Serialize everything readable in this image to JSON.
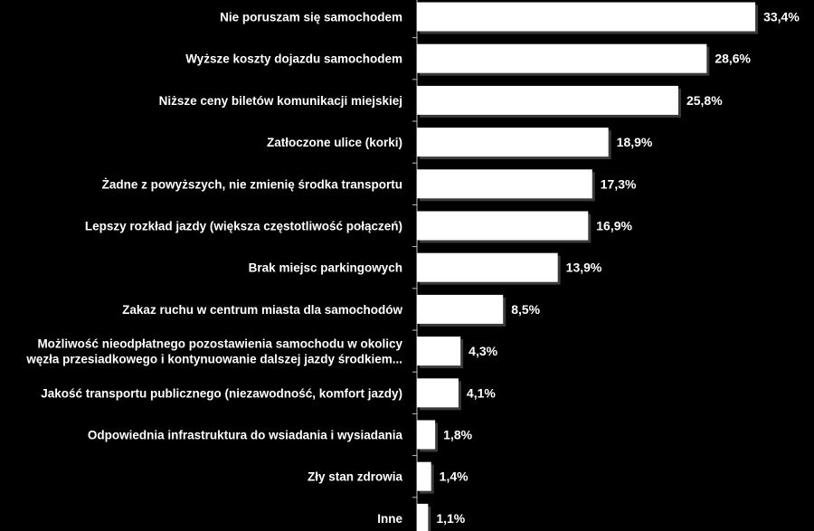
{
  "chart_data": {
    "type": "bar",
    "orientation": "horizontal",
    "title": "",
    "xlabel": "",
    "ylabel": "",
    "xlim": [
      0,
      35
    ],
    "grid": false,
    "legend": "none",
    "colors": {
      "background": "#000000",
      "bar": "#ffffff",
      "text": "#ffffff"
    },
    "categories": [
      [
        "Nie poruszam się samochodem"
      ],
      [
        "Wyższe koszty dojazdu samochodem"
      ],
      [
        "Niższe ceny biletów komunikacji miejskiej"
      ],
      [
        "Zatłoczone ulice (korki)"
      ],
      [
        "Żadne z powyższych, nie zmienię środka transportu"
      ],
      [
        "Lepszy rozkład jazdy (większa częstotliwość połączeń)"
      ],
      [
        "Brak miejsc parkingowych"
      ],
      [
        "Zakaz ruchu w centrum miasta dla samochodów"
      ],
      [
        "Możliwość nieodpłatnego pozostawienia samochodu w okolicy",
        "węzła przesiadkowego i kontynuowanie dalszej jazdy środkiem..."
      ],
      [
        "Jakość transportu publicznego (niezawodność, komfort jazdy)"
      ],
      [
        "Odpowiednia infrastruktura do wsiadania i wysiadania"
      ],
      [
        "Zły stan zdrowia"
      ],
      [
        "Inne"
      ]
    ],
    "values": [
      33.4,
      28.6,
      25.8,
      18.9,
      17.3,
      16.9,
      13.9,
      8.5,
      4.3,
      4.1,
      1.8,
      1.4,
      1.1
    ],
    "value_labels": [
      "33,4%",
      "28,6%",
      "25,8%",
      "18,9%",
      "17,3%",
      "16,9%",
      "13,9%",
      "8,5%",
      "4,3%",
      "4,1%",
      "1,8%",
      "1,4%",
      "1,1%"
    ]
  }
}
